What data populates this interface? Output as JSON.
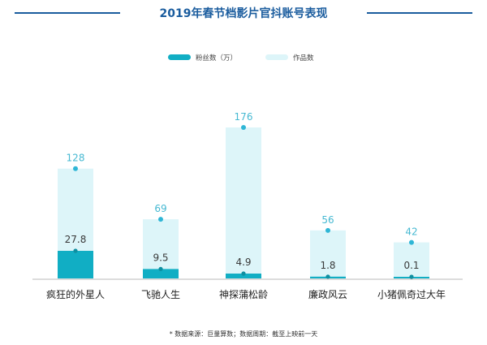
{
  "colors": {
    "title": "#1a5c9e",
    "fans": "#11aec4",
    "works": "#ddf5f9",
    "fans_marker": "#0e8fa1",
    "works_marker": "#2fb6d6",
    "works_label": "#46b9d2",
    "fans_label": "#3a3a3a",
    "axis": "#b8b8b8",
    "category_text": "#222222",
    "source_text": "#333333"
  },
  "chart_data": {
    "type": "bar",
    "title": "2019年春节档影片官抖账号表现",
    "categories": [
      "疯狂的外星人",
      "飞驰人生",
      "神探蒲松龄",
      "廉政风云",
      "小猪佩奇过大年"
    ],
    "series": [
      {
        "name": "粉丝数（万）",
        "values": [
          27.8,
          9.5,
          4.9,
          1.8,
          0.1
        ],
        "labels": [
          "27.8",
          "9.5",
          "4.9",
          "1.8",
          "0.1"
        ]
      },
      {
        "name": "作品数",
        "values": [
          128,
          69,
          176,
          56,
          42
        ],
        "labels": [
          "128",
          "69",
          "176",
          "56",
          "42"
        ]
      }
    ],
    "ylim": [
      0,
      176
    ],
    "xlabel": "",
    "ylabel": "",
    "source_note": "* 数据来源：巨量算数；数据周期：截至上映前一天"
  }
}
